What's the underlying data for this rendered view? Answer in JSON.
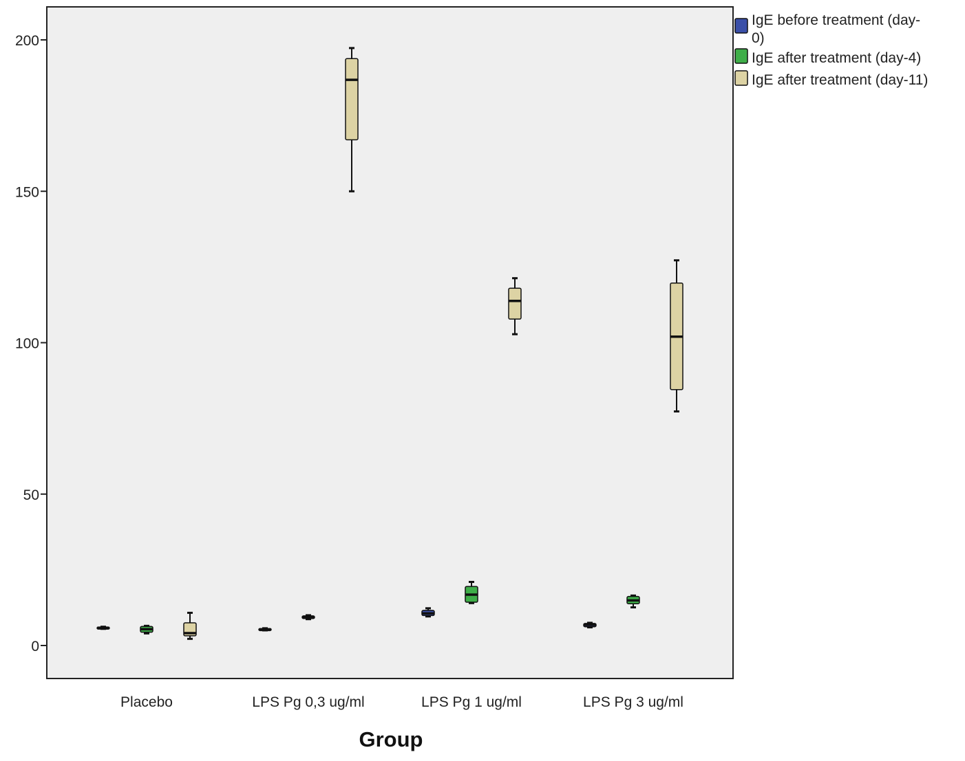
{
  "chart_data": {
    "type": "box",
    "xlabel": "Group",
    "ylabel": "",
    "ylim": [
      -11,
      210
    ],
    "yticks": [
      0,
      50,
      100,
      150,
      200
    ],
    "categories": [
      "Placebo",
      "LPS Pg 0,3 ug/ml",
      "LPS Pg 1 ug/ml",
      "LPS Pg 3 ug/ml"
    ],
    "legend_position": "top-right (outside plot)",
    "grid": false,
    "plot_background": "#efefef",
    "series": [
      {
        "name": "IgE before treatment (day-0)",
        "color": "#3a4fa8",
        "boxes": [
          {
            "min": 5.5,
            "q1": 5.6,
            "median": 5.8,
            "q3": 6.1,
            "max": 6.2
          },
          {
            "min": 5.0,
            "q1": 5.1,
            "median": 5.3,
            "q3": 5.6,
            "max": 5.7
          },
          {
            "min": 9.6,
            "q1": 9.9,
            "median": 10.6,
            "q3": 11.6,
            "max": 12.3
          },
          {
            "min": 6.0,
            "q1": 6.2,
            "median": 6.8,
            "q3": 7.3,
            "max": 7.5
          }
        ]
      },
      {
        "name": "IgE after treatment (day-4)",
        "color": "#3fae49",
        "boxes": [
          {
            "min": 4.0,
            "q1": 4.4,
            "median": 5.4,
            "q3": 6.3,
            "max": 6.5
          },
          {
            "min": 8.7,
            "q1": 8.9,
            "median": 9.3,
            "q3": 9.8,
            "max": 10.0
          },
          {
            "min": 14.0,
            "q1": 14.3,
            "median": 16.8,
            "q3": 19.5,
            "max": 21.0
          },
          {
            "min": 12.6,
            "q1": 13.8,
            "median": 14.9,
            "q3": 16.2,
            "max": 16.5
          }
        ]
      },
      {
        "name": "IgE after treatment (day-11)",
        "color": "#ddd3a4",
        "boxes": [
          {
            "min": 2.2,
            "q1": 3.2,
            "median": 4.1,
            "q3": 7.5,
            "max": 10.8
          },
          null,
          {
            "min": 102.8,
            "q1": 107.8,
            "median": 113.8,
            "q3": 118.0,
            "max": 121.3
          },
          {
            "min": 77.3,
            "q1": 84.5,
            "median": 102.0,
            "q3": 119.7,
            "max": 127.2
          }
        ]
      }
    ],
    "extra_boxes": [
      {
        "series": 2,
        "category": 1,
        "min": 150.0,
        "q1": 167.0,
        "median": 186.8,
        "q3": 193.8,
        "max": 197.3
      }
    ]
  },
  "legend": {
    "items": [
      {
        "line1": "IgE before treatment (day-",
        "line2": "0)",
        "color": "#3a4fa8"
      },
      {
        "line1": "IgE after treatment (day-4)",
        "line2": "",
        "color": "#3fae49"
      },
      {
        "line1": "IgE after treatment (day-11)",
        "line2": "",
        "color": "#ddd3a4"
      }
    ]
  }
}
